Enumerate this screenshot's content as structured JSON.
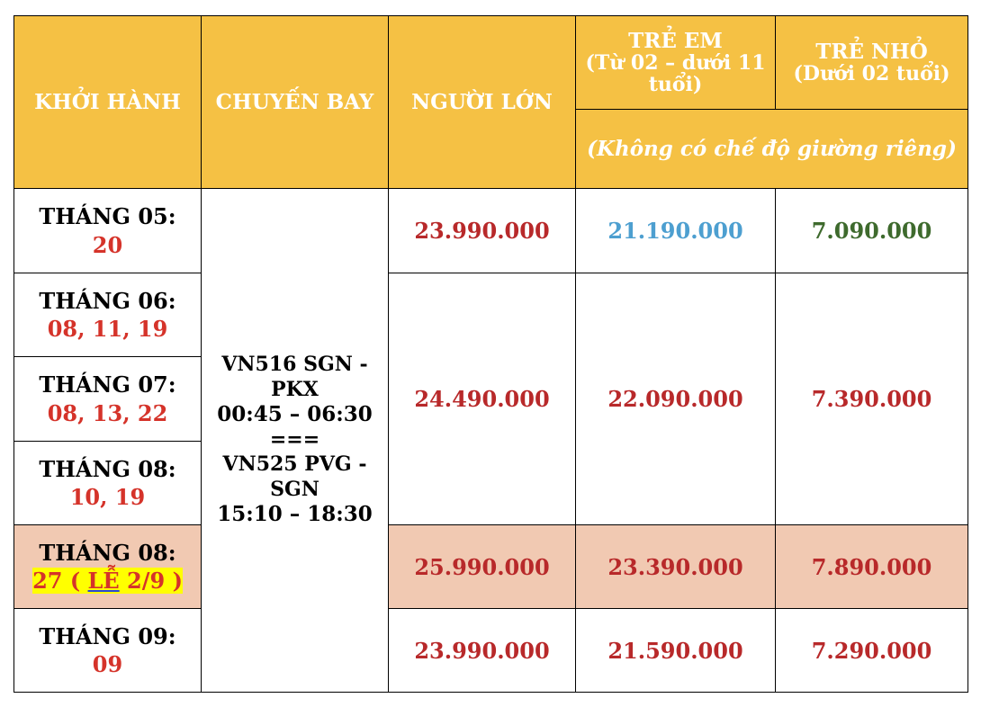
{
  "headers": {
    "departure": "KHỞI HÀNH",
    "flight": "CHUYẾN BAY",
    "adult": "NGƯỜI LỚN",
    "child_title": "TRẺ EM",
    "child_sub": "(Từ 02 – dưới 11 tuổi)",
    "infant_title": "TRẺ NHỎ",
    "infant_sub": "(Dưới 02 tuổi)",
    "note": "(Không có chế độ giường riêng)"
  },
  "flight": {
    "outbound_route": "VN516 SGN - PKX",
    "outbound_time": "00:45 – 06:30",
    "separator": "===",
    "return_route": "VN525 PVG - SGN",
    "return_time": "15:10 – 18:30"
  },
  "rows": [
    {
      "month": "THÁNG 05:",
      "days": "20",
      "adult": "23.990.000",
      "child": "21.190.000",
      "infant": "7.090.000"
    },
    {
      "month": "THÁNG 06:",
      "days": "08, 11, 19"
    },
    {
      "month": "THÁNG 07:",
      "days": "08, 13, 22",
      "adult": "24.490.000",
      "child": "22.090.000",
      "infant": "7.390.000"
    },
    {
      "month": "THÁNG 08:",
      "days": "10, 19"
    },
    {
      "month": "THÁNG 08:",
      "days_prefix": "27 ( ",
      "days_underlined": "LỄ",
      "days_suffix": " 2/9 )",
      "adult": "25.990.000",
      "child": "23.390.000",
      "infant": "7.890.000"
    },
    {
      "month": "THÁNG 09:",
      "days": "09",
      "adult": "23.990.000",
      "child": "21.590.000",
      "infant": "7.290.000"
    }
  ],
  "colors": {
    "header_bg": "#f5c144",
    "holiday_bg": "#f1c9b2",
    "price_red": "#b8292a",
    "price_blue": "#4d9fd0",
    "price_green": "#3e6a2d",
    "highlight_yellow": "#ffff00"
  }
}
